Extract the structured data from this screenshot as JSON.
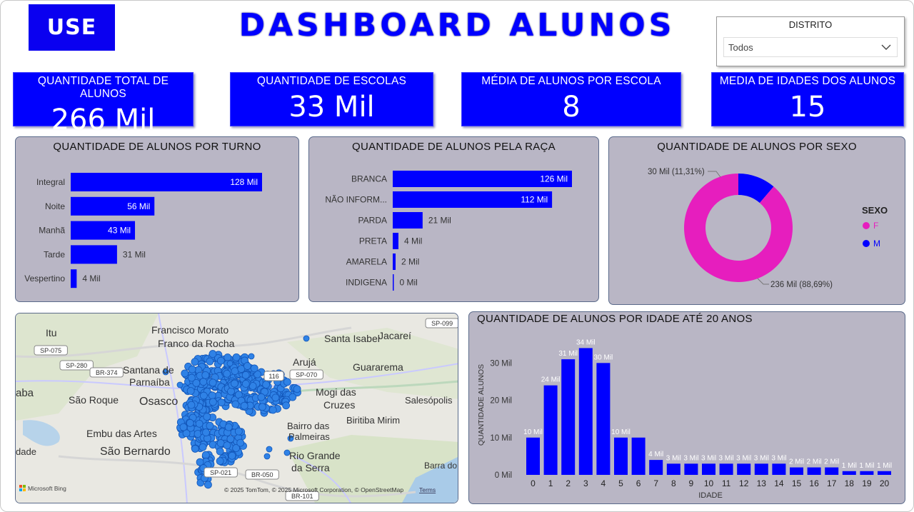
{
  "header": {
    "logo_text": "USE",
    "title": "DASHBOARD ALUNOS"
  },
  "slicer": {
    "title": "DISTRITO",
    "value": "Todos"
  },
  "kpis": [
    {
      "label": "QUANTIDADE TOTAL DE ALUNOS",
      "value": "266 Mil"
    },
    {
      "label": "QUANTIDADE DE ESCOLAS",
      "value": "33 Mil"
    },
    {
      "label": "MÉDIA DE ALUNOS POR ESCOLA",
      "value": "8"
    },
    {
      "label": "MEDIA DE IDADES DOS ALUNOS",
      "value": "15"
    }
  ],
  "map": {
    "places": [
      {
        "name": "Itu"
      },
      {
        "name": "Francisco Morato"
      },
      {
        "name": "Franco da Rocha"
      },
      {
        "name": "Santa Isabel"
      },
      {
        "name": "Jacareí"
      },
      {
        "name": "Santana de"
      },
      {
        "name": "Parnaíba"
      },
      {
        "name": "Arujá"
      },
      {
        "name": "Guararema"
      },
      {
        "name": "São Roque"
      },
      {
        "name": "Osasco"
      },
      {
        "name": "Mogi das"
      },
      {
        "name": "Cruzes"
      },
      {
        "name": "Salesópolis"
      },
      {
        "name": "Biritiba Mirim"
      },
      {
        "name": "Embu das Artes"
      },
      {
        "name": "Bairro das"
      },
      {
        "name": "Palmeiras"
      },
      {
        "name": "São Bernardo"
      },
      {
        "name": "Rio Grande"
      },
      {
        "name": "da Serra"
      },
      {
        "name": "Barra do"
      },
      {
        "name": "aba"
      },
      {
        "name": "dade"
      }
    ],
    "shields": [
      "SP-099",
      "SP-075",
      "SP-280",
      "BR-374",
      "116",
      "SP-070",
      "SP-021",
      "BR-050",
      "BR-101"
    ],
    "attribution": "© 2025 TomTom, © 2025 Microsoft Corporation, © OpenStreetMap",
    "terms": "Terms",
    "bing": "Microsoft Bing"
  },
  "chart_data": [
    {
      "type": "bar",
      "orientation": "horizontal",
      "title": "QUANTIDADE DE ALUNOS POR TURNO",
      "categories": [
        "Integral",
        "Noite",
        "Manhã",
        "Tarde",
        "Vespertino"
      ],
      "values": [
        128,
        56,
        43,
        31,
        4
      ],
      "labels": [
        "128 Mil",
        "56 Mil",
        "43 Mil",
        "31 Mil",
        "4 Mil"
      ],
      "unit": "Mil",
      "color": "#0000ff"
    },
    {
      "type": "bar",
      "orientation": "horizontal",
      "title": "QUANTIDADE DE ALUNOS PELA RAÇA",
      "categories": [
        "BRANCA",
        "NÃO INFORM...",
        "PARDA",
        "PRETA",
        "AMARELA",
        "INDIGENA"
      ],
      "values": [
        126,
        112,
        21,
        4,
        2,
        0
      ],
      "labels": [
        "126 Mil",
        "112 Mil",
        "21 Mil",
        "4 Mil",
        "2 Mil",
        "0 Mil"
      ],
      "unit": "Mil",
      "color": "#0000ff"
    },
    {
      "type": "pie",
      "donut": true,
      "title": "QUANTIDADE DE ALUNOS POR SEXO",
      "legend_title": "SEXO",
      "legend_placement": "right",
      "slices": [
        {
          "name": "F",
          "value": 236,
          "label": "236 Mil (88,69%)",
          "color": "#e61ebe"
        },
        {
          "name": "M",
          "value": 30,
          "label": "30 Mil (11,31%)",
          "color": "#0000ff"
        }
      ]
    },
    {
      "type": "bar",
      "title": "QUANTIDADE DE ALUNOS POR IDADE ATÉ 20 ANOS",
      "xlabel": "IDADE",
      "ylabel": "QUANTIDADE ALUNOS",
      "categories": [
        "0",
        "1",
        "2",
        "3",
        "4",
        "5",
        "6",
        "7",
        "8",
        "9",
        "10",
        "11",
        "12",
        "13",
        "14",
        "15",
        "16",
        "17",
        "18",
        "19",
        "20"
      ],
      "values": [
        10,
        24,
        31,
        34,
        30,
        10,
        10,
        4,
        3,
        3,
        3,
        3,
        3,
        3,
        3,
        2,
        2,
        2,
        1,
        1,
        1
      ],
      "labels": [
        "10 Mil",
        "24 Mil",
        "31 Mil",
        "34 Mil",
        "30 Mil",
        "10 Mil",
        "",
        "4 Mil",
        "3 Mil",
        "3 Mil",
        "3 Mil",
        "3 Mil",
        "3 Mil",
        "3 Mil",
        "3 Mil",
        "2 Mil",
        "2 Mil",
        "2 Mil",
        "1 Mil",
        "1 Mil",
        "1 Mil"
      ],
      "yticks": [
        "0 Mil",
        "10 Mil",
        "20 Mil",
        "30 Mil"
      ],
      "ylim": [
        0,
        36
      ],
      "grid": false,
      "color": "#0000ff"
    }
  ]
}
